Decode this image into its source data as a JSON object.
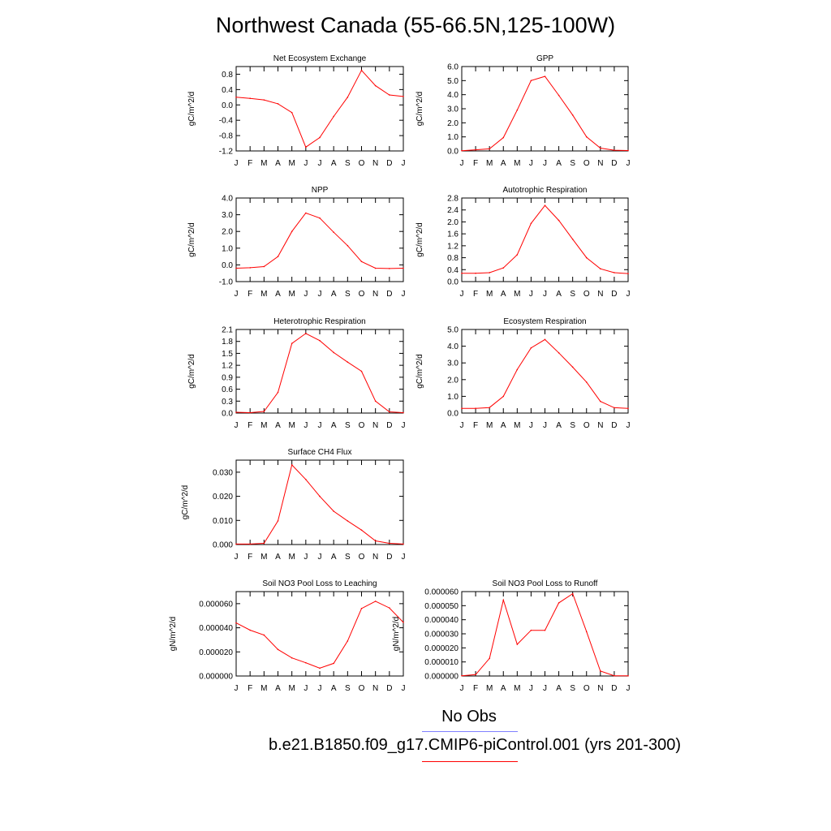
{
  "title": "Northwest Canada (55-66.5N,125-100W)",
  "months": [
    "J",
    "F",
    "M",
    "A",
    "M",
    "J",
    "J",
    "A",
    "S",
    "O",
    "N",
    "D",
    "J"
  ],
  "legend": {
    "obs_label": "No Obs",
    "obs_color": "#8080ff",
    "run_label": "b.e21.B1850.f09_g17.CMIP6-piControl.001 (yrs 201-300)",
    "run_color": "#ff0000"
  },
  "chart_data": [
    {
      "type": "line",
      "title": "Net Ecosystem Exchange",
      "ylabel": "gC/m^2/d",
      "ylim": [
        -1.2,
        1.0
      ],
      "yticks": [
        -1.2,
        -0.8,
        -0.4,
        0.0,
        0.4,
        0.8
      ],
      "ytick_labels": [
        "-1.2",
        "-0.8",
        "-0.4",
        "0.0",
        "0.4",
        "0.8"
      ],
      "values": [
        0.2,
        0.17,
        0.13,
        0.03,
        -0.2,
        -1.1,
        -0.85,
        -0.3,
        0.2,
        0.9,
        0.5,
        0.26,
        0.22
      ]
    },
    {
      "type": "line",
      "title": "GPP",
      "ylabel": "gC/m^2/d",
      "ylim": [
        0.0,
        6.0
      ],
      "yticks": [
        0,
        1,
        2,
        3,
        4,
        5,
        6
      ],
      "ytick_labels": [
        "0.0",
        "1.0",
        "2.0",
        "3.0",
        "4.0",
        "5.0",
        "6.0"
      ],
      "values": [
        0.02,
        0.08,
        0.15,
        0.95,
        2.9,
        5.0,
        5.3,
        3.95,
        2.55,
        1.0,
        0.2,
        0.05,
        0.03
      ]
    },
    {
      "type": "line",
      "title": "NPP",
      "ylabel": "gC/m^2/d",
      "ylim": [
        -1.0,
        4.0
      ],
      "yticks": [
        -1,
        0,
        1,
        2,
        3,
        4
      ],
      "ytick_labels": [
        "-1.0",
        "0.0",
        "1.0",
        "2.0",
        "3.0",
        "4.0"
      ],
      "values": [
        -0.2,
        -0.17,
        -0.1,
        0.5,
        2.0,
        3.1,
        2.8,
        1.95,
        1.15,
        0.2,
        -0.2,
        -0.22,
        -0.2
      ]
    },
    {
      "type": "line",
      "title": "Autotrophic Respiration",
      "ylabel": "gC/m^2/d",
      "ylim": [
        0.0,
        2.8
      ],
      "yticks": [
        0,
        0.4,
        0.8,
        1.2,
        1.6,
        2.0,
        2.4,
        2.8
      ],
      "ytick_labels": [
        "0.0",
        "0.4",
        "0.8",
        "1.2",
        "1.6",
        "2.0",
        "2.4",
        "2.8"
      ],
      "values": [
        0.28,
        0.28,
        0.3,
        0.46,
        0.9,
        1.95,
        2.55,
        2.05,
        1.42,
        0.8,
        0.43,
        0.3,
        0.27
      ]
    },
    {
      "type": "line",
      "title": "Heterotrophic Respiration",
      "ylabel": "gC/m^2/d",
      "ylim": [
        0.0,
        2.1
      ],
      "yticks": [
        0,
        0.3,
        0.6,
        0.9,
        1.2,
        1.5,
        1.8,
        2.1
      ],
      "ytick_labels": [
        "0.0",
        "0.3",
        "0.6",
        "0.9",
        "1.2",
        "1.5",
        "1.8",
        "2.1"
      ],
      "values": [
        0.02,
        0.01,
        0.04,
        0.52,
        1.75,
        2.0,
        1.82,
        1.52,
        1.28,
        1.05,
        0.3,
        0.03,
        0.01
      ]
    },
    {
      "type": "line",
      "title": "Ecosystem Respiration",
      "ylabel": "gC/m^2/d",
      "ylim": [
        0.0,
        5.0
      ],
      "yticks": [
        0,
        1,
        2,
        3,
        4,
        5
      ],
      "ytick_labels": [
        "0.0",
        "1.0",
        "2.0",
        "3.0",
        "4.0",
        "5.0"
      ],
      "values": [
        0.28,
        0.28,
        0.33,
        1.0,
        2.6,
        3.9,
        4.4,
        3.6,
        2.75,
        1.85,
        0.7,
        0.32,
        0.28
      ]
    },
    {
      "type": "line",
      "title": "Surface CH4 Flux",
      "ylabel": "gC/m^2/d",
      "ylim": [
        0.0,
        0.035
      ],
      "yticks": [
        0,
        0.01,
        0.02,
        0.03
      ],
      "ytick_labels": [
        "0.000",
        "0.010",
        "0.020",
        "0.030"
      ],
      "values": [
        0.0002,
        0.0002,
        0.0005,
        0.0098,
        0.033,
        0.027,
        0.02,
        0.0138,
        0.0098,
        0.006,
        0.0015,
        0.0005,
        0.0002
      ]
    },
    {
      "type": "line",
      "title": "Soil NO3 Pool Loss to Leaching",
      "ylabel": "gN/m^2/d",
      "ylim": [
        0.0,
        7e-05
      ],
      "yticks": [
        0,
        2e-05,
        4e-05,
        6e-05
      ],
      "ytick_labels": [
        "0.000000",
        "0.000020",
        "0.000040",
        "0.000060"
      ],
      "values": [
        4.4e-05,
        3.8e-05,
        3.4e-05,
        2.2e-05,
        1.5e-05,
        1.1e-05,
        6.5e-06,
        1.05e-05,
        2.9e-05,
        5.6e-05,
        6.2e-05,
        5.65e-05,
        4.45e-05
      ]
    },
    {
      "type": "line",
      "title": "Soil NO3 Pool Loss to Runoff",
      "ylabel": "gN/m^2/d",
      "ylim": [
        0.0,
        6e-05
      ],
      "yticks": [
        0,
        1e-05,
        2e-05,
        3e-05,
        4e-05,
        5e-05,
        6e-05
      ],
      "ytick_labels": [
        "0.000000",
        "0.000010",
        "0.000020",
        "0.000030",
        "0.000040",
        "0.000050",
        "0.000060"
      ],
      "values": [
        2e-07,
        1e-06,
        1.25e-05,
        5.4e-05,
        2.25e-05,
        3.25e-05,
        3.25e-05,
        5.2e-05,
        5.85e-05,
        3.15e-05,
        3.5e-06,
        2e-07,
        1e-07
      ]
    }
  ]
}
